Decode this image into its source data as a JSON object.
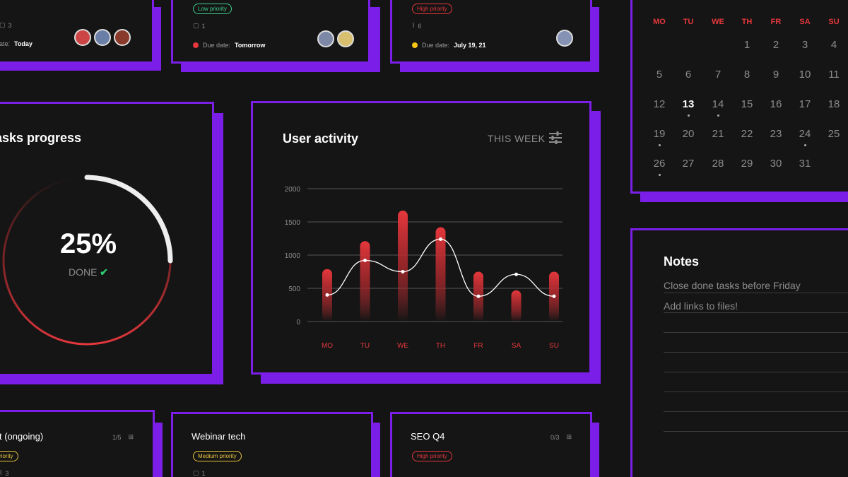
{
  "top_cards": [
    {
      "comments": "3",
      "due_label": "ate:",
      "due_value": "Today",
      "dot_color": ""
    },
    {
      "priority": "Low priority",
      "comments": "1",
      "due_label": "Due date:",
      "due_value": "Tomorrow",
      "dot_color": "#e5373c"
    },
    {
      "priority": "High priority",
      "attachments": "6",
      "due_label": "Due date:",
      "due_value": "July 19, 21",
      "dot_color": "#f5c518"
    }
  ],
  "progress": {
    "title": "asks progress",
    "percent_label": "25%",
    "done_label": "DONE",
    "check_icon": "check-icon",
    "accent": "#e5373c"
  },
  "activity": {
    "title": "User activity",
    "period": "THIS WEEK",
    "filter_icon": "sliders-icon"
  },
  "chart_data": {
    "type": "bar",
    "title": "User activity",
    "categories": [
      "MO",
      "TU",
      "WE",
      "TH",
      "FR",
      "SA",
      "SU"
    ],
    "series": [
      {
        "name": "bars",
        "values": [
          790,
          1210,
          1670,
          1420,
          750,
          470,
          750
        ]
      },
      {
        "name": "line",
        "values": [
          400,
          920,
          750,
          1240,
          380,
          710,
          380
        ]
      }
    ],
    "yticks": [
      "2000",
      "1500",
      "1000",
      "500",
      "0"
    ],
    "ylim": [
      0,
      2000
    ],
    "grid": true
  },
  "calendar": {
    "weekdays": [
      "MO",
      "TU",
      "WE",
      "TH",
      "FR",
      "SA",
      "SU"
    ],
    "rows": [
      [
        "",
        "",
        "",
        "",
        "1",
        "2",
        "3",
        "4"
      ],
      [
        "",
        "5",
        "6",
        "7",
        "8",
        "9",
        "10",
        "11"
      ],
      [
        "",
        "12",
        "13",
        "14",
        "15",
        "16",
        "17",
        "18"
      ],
      [
        "",
        "19",
        "20",
        "21",
        "22",
        "23",
        "24",
        "25"
      ],
      [
        "",
        "26",
        "27",
        "28",
        "29",
        "30",
        "31",
        ""
      ]
    ],
    "today": "13"
  },
  "notes": {
    "title": "Notes",
    "items": [
      "Close done tasks before Friday",
      "Add links to files!"
    ]
  },
  "bottom_cards": [
    {
      "title": "t (ongoing)",
      "subtasks": "1/5",
      "priority": "riority",
      "comments": "3"
    },
    {
      "title": "Webinar tech",
      "priority": "Medium priority",
      "comments": "1"
    },
    {
      "title": "SEO Q4",
      "subtasks": "0/3",
      "priority": "High priority"
    }
  ]
}
